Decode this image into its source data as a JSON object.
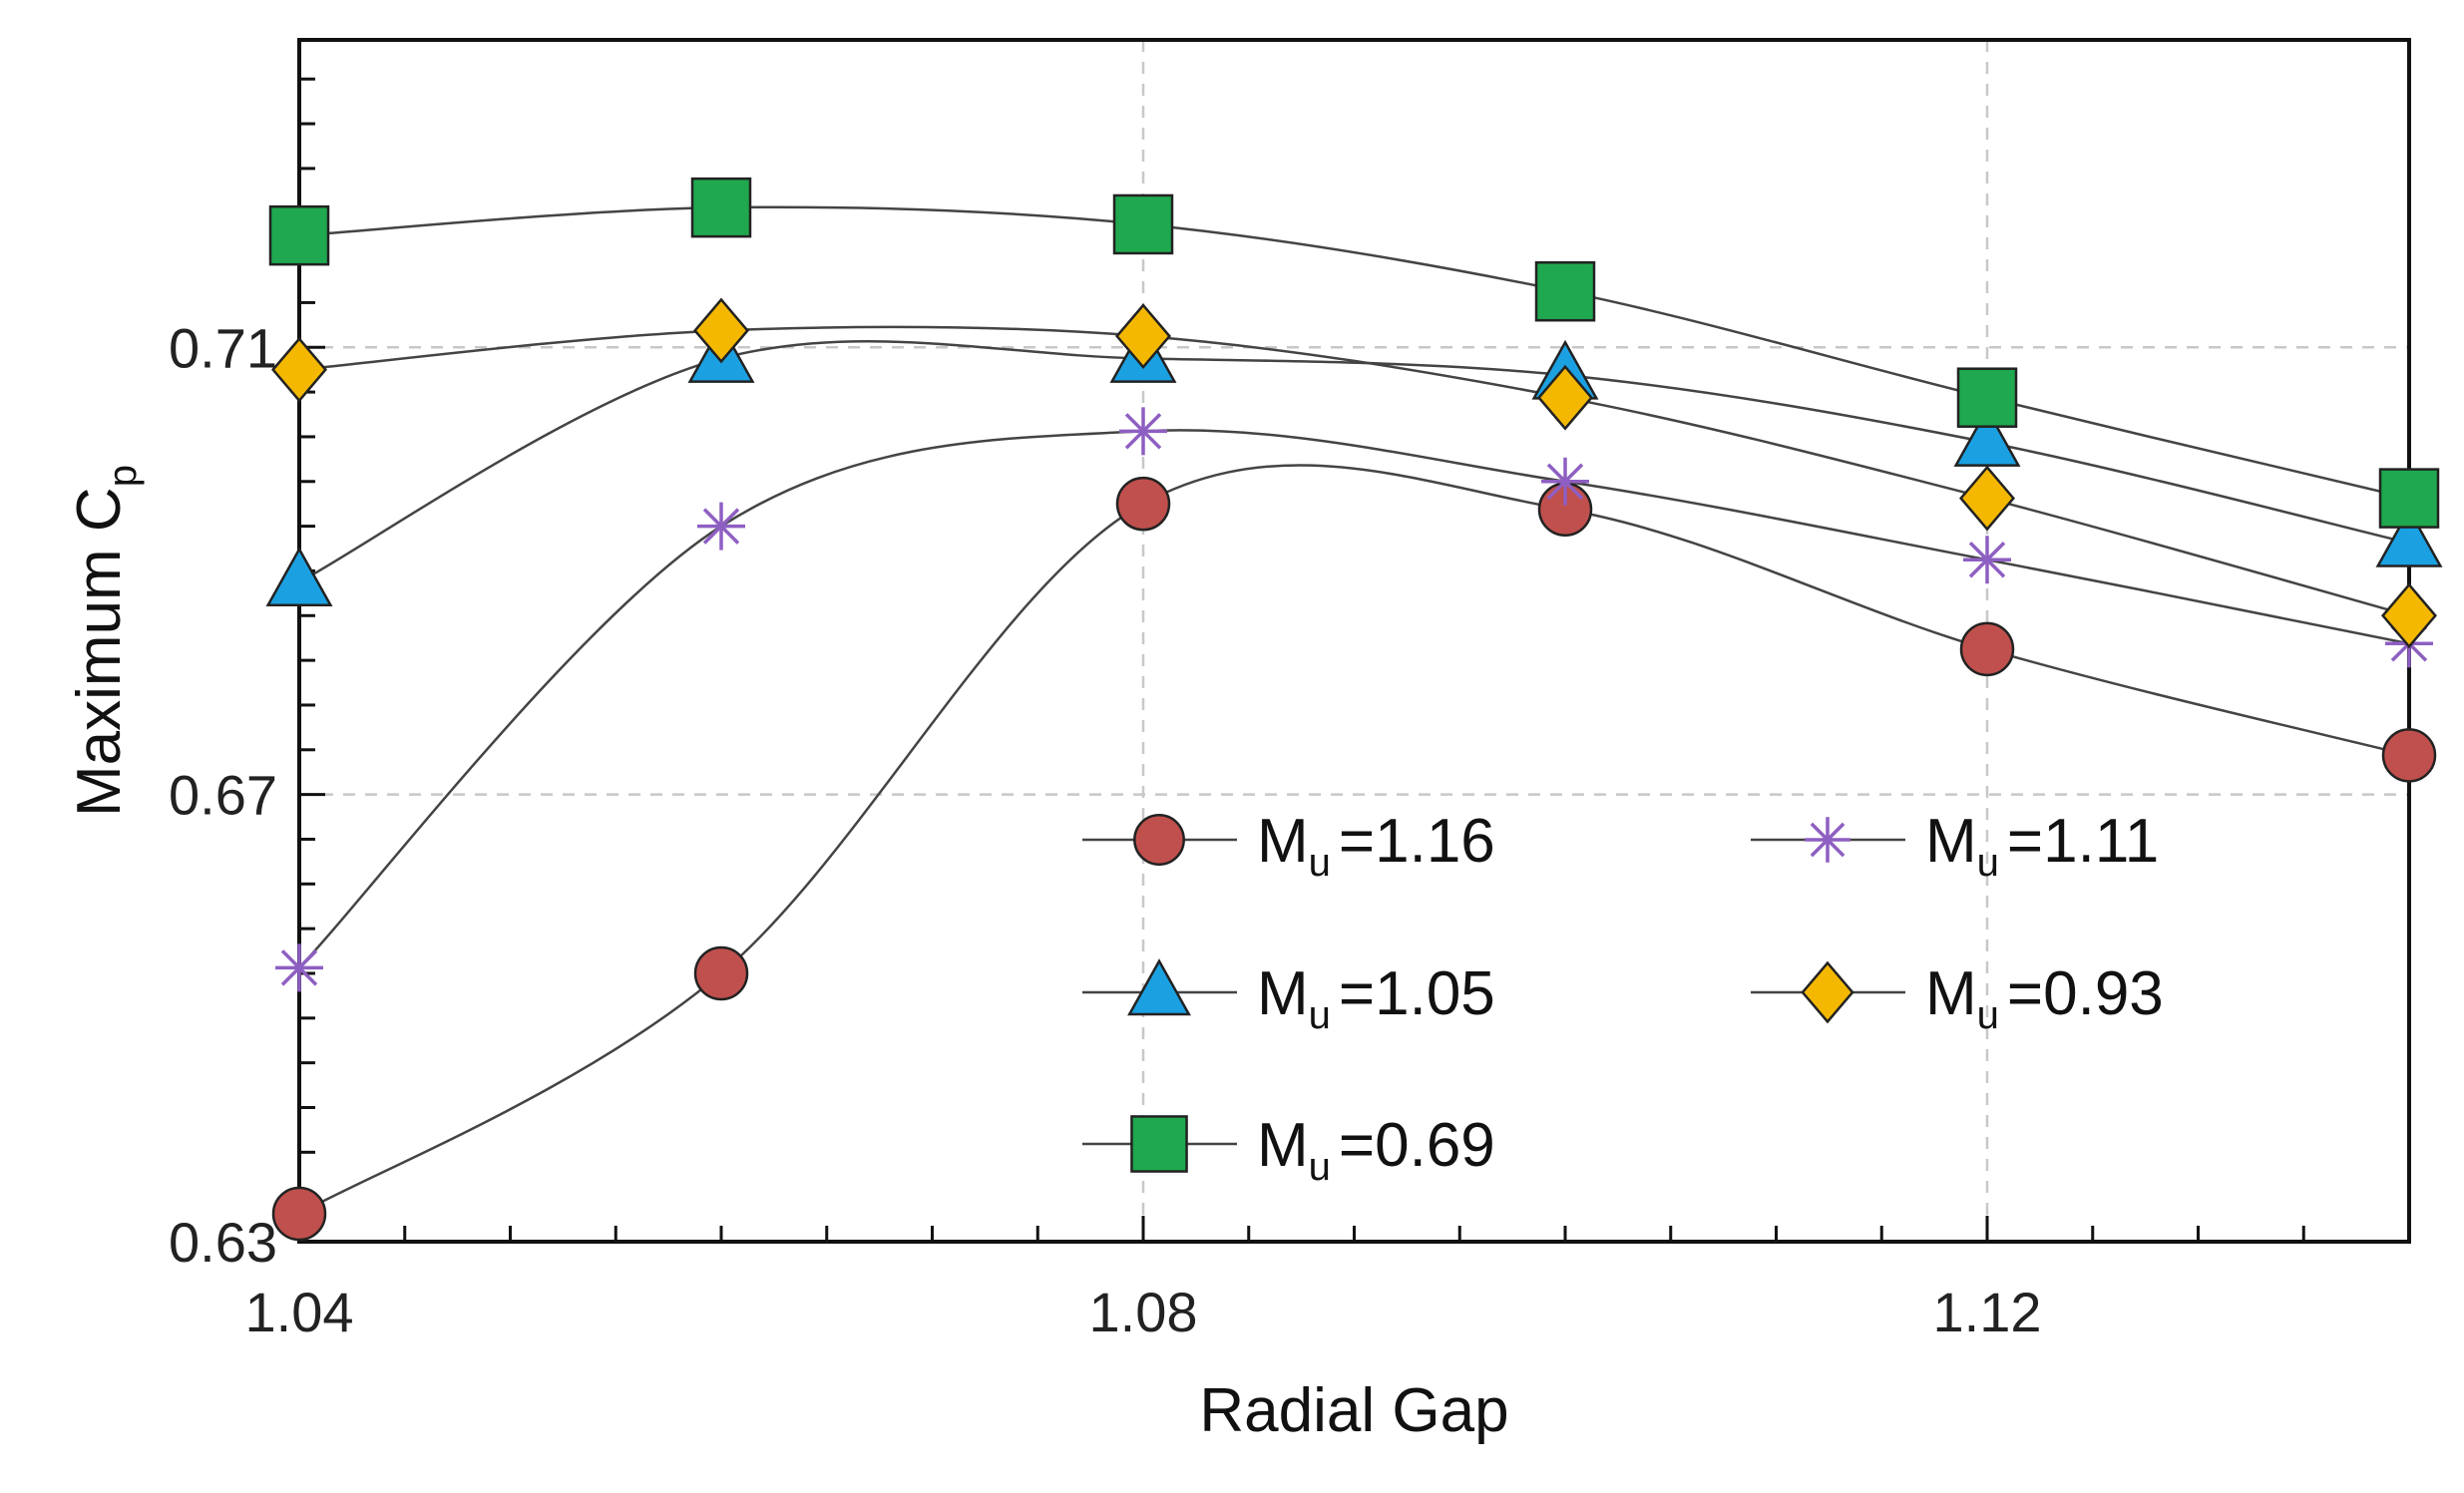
{
  "chart_data": {
    "type": "line",
    "title": "",
    "xlabel": "Radial Gap",
    "ylabel": "Maximum C",
    "ylabel_subscript": "p",
    "xlim": [
      1.04,
      1.14
    ],
    "ylim": [
      0.63,
      0.7375
    ],
    "xticks": [
      1.04,
      1.08,
      1.12
    ],
    "xtick_labels": [
      "1.04",
      "1.08",
      "1.12"
    ],
    "yticks": [
      0.63,
      0.67,
      0.71
    ],
    "ytick_labels": [
      "0.63",
      "0.67",
      "0.71"
    ],
    "grid": true,
    "legend_position": "lower-right",
    "legend_prefix": "M",
    "legend_subscript": "u",
    "x": [
      1.04,
      1.06,
      1.08,
      1.1,
      1.12,
      1.14
    ],
    "series": [
      {
        "name": "=1.16",
        "marker": "circle",
        "color": "#c0504d",
        "values": [
          0.6325,
          0.654,
          0.696,
          0.6955,
          0.683,
          0.6735
        ]
      },
      {
        "name": "=1.11",
        "marker": "asterisk",
        "color": "#8e5fc2",
        "values": [
          0.6545,
          0.694,
          0.7025,
          0.698,
          0.691,
          0.6835
        ]
      },
      {
        "name": "=1.05",
        "marker": "triangle",
        "color": "#1ba1e2",
        "values": [
          0.689,
          0.709,
          0.709,
          0.7075,
          0.7015,
          0.6925
        ]
      },
      {
        "name": "=0.93",
        "marker": "diamond",
        "color": "#f5b800",
        "values": [
          0.708,
          0.7115,
          0.711,
          0.7055,
          0.6965,
          0.686
        ]
      },
      {
        "name": "=0.69",
        "marker": "square",
        "color": "#1fa84f",
        "values": [
          0.72,
          0.7225,
          0.721,
          0.715,
          0.7055,
          0.6965
        ]
      }
    ],
    "legend_order": [
      "=1.16",
      "=1.11",
      "=1.05",
      "=0.93",
      "=0.69"
    ]
  }
}
